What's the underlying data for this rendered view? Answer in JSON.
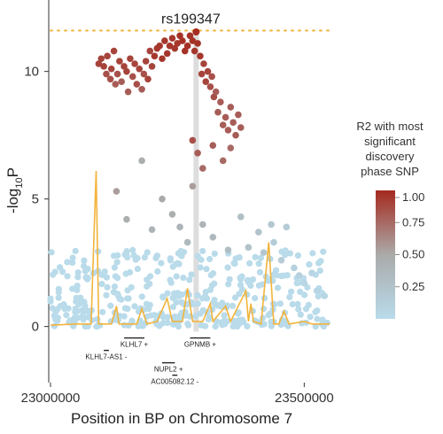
{
  "chart_data": {
    "type": "scatter",
    "title": "",
    "xlabel": "Position in BP on Chromosome 7",
    "ylabel_main": "-log",
    "ylabel_sub": "10",
    "ylabel_tail": "P",
    "xlim": [
      23000000,
      23550000
    ],
    "ylim": [
      -2.2,
      12.8
    ],
    "x_ticks": [
      23000000,
      23500000
    ],
    "x_tick_labels": [
      "23000000",
      "23500000"
    ],
    "y_ticks": [
      0,
      5,
      10
    ],
    "y_tick_labels": [
      "0",
      "5",
      "10"
    ],
    "significance_threshold": 11.6,
    "lead_snp": {
      "label": "rs199347",
      "x": 23287000,
      "y": 11.55
    },
    "legend": {
      "title_lines": [
        "R2 with most",
        "significant",
        "discovery",
        "phase SNP"
      ],
      "ticks": [
        1.0,
        0.75,
        0.5,
        0.25
      ],
      "tick_labels": [
        "1.00",
        "0.75",
        "0.50",
        "0.25"
      ],
      "placement": "right"
    },
    "colors": {
      "high_ld": "#a52a1f",
      "mid_ld": "#aaaaaa",
      "low_ld": "#b9dbea",
      "recomb_line": "#f2b43c",
      "threshold": "#f2b43c",
      "lead_vline": "#d0d0d0"
    },
    "genes": [
      {
        "name": "KLHL7 +",
        "start": 23145000,
        "end": 23185000,
        "row": 0
      },
      {
        "name": "GPNMB +",
        "start": 23275000,
        "end": 23315000,
        "row": 0
      },
      {
        "name": "KLHL7-AS1 -",
        "start": 23105000,
        "end": 23115000,
        "row": 1
      },
      {
        "name": "NUPL2 +",
        "start": 23220000,
        "end": 23245000,
        "row": 2
      },
      {
        "name": "AC005082.12 -",
        "start": 23240000,
        "end": 23250000,
        "row": 3
      }
    ],
    "recombination": [
      [
        23000000,
        0.05
      ],
      [
        23050000,
        0.1
      ],
      [
        23080000,
        0.1
      ],
      [
        23090000,
        6.1
      ],
      [
        23095000,
        0.1
      ],
      [
        23120000,
        0.1
      ],
      [
        23130000,
        0.8
      ],
      [
        23135000,
        0.1
      ],
      [
        23170000,
        0.1
      ],
      [
        23180000,
        0.7
      ],
      [
        23190000,
        0.1
      ],
      [
        23210000,
        0.2
      ],
      [
        23230000,
        1.1
      ],
      [
        23240000,
        0.2
      ],
      [
        23260000,
        0.2
      ],
      [
        23270000,
        1.5
      ],
      [
        23280000,
        0.2
      ],
      [
        23300000,
        0.2
      ],
      [
        23315000,
        0.9
      ],
      [
        23320000,
        0.2
      ],
      [
        23345000,
        0.8
      ],
      [
        23355000,
        0.2
      ],
      [
        23385000,
        1.4
      ],
      [
        23390000,
        0.2
      ],
      [
        23395000,
        0.9
      ],
      [
        23400000,
        0.2
      ],
      [
        23415000,
        0.1
      ],
      [
        23430000,
        3.3
      ],
      [
        23440000,
        0.1
      ],
      [
        23450000,
        0.1
      ],
      [
        23460000,
        0.6
      ],
      [
        23470000,
        0.1
      ],
      [
        23500000,
        0.2
      ],
      [
        23515000,
        0.1
      ],
      [
        23550000,
        0.1
      ]
    ],
    "series": [
      {
        "name": "",
        "points": [
          [
            23095000,
            10.3,
            0.9
          ],
          [
            23100000,
            10.5,
            0.9
          ],
          [
            23105000,
            10.2,
            0.9
          ],
          [
            23110000,
            9.9,
            0.85
          ],
          [
            23112000,
            10.6,
            0.9
          ],
          [
            23118000,
            9.7,
            0.85
          ],
          [
            23120000,
            10.1,
            0.9
          ],
          [
            23125000,
            10.8,
            0.9
          ],
          [
            23128000,
            9.5,
            0.8
          ],
          [
            23132000,
            9.9,
            0.85
          ],
          [
            23136000,
            10.4,
            0.9
          ],
          [
            23140000,
            9.6,
            0.8
          ],
          [
            23145000,
            10.2,
            0.9
          ],
          [
            23150000,
            10.0,
            0.9
          ],
          [
            23153000,
            9.2,
            0.8
          ],
          [
            23157000,
            10.5,
            0.9
          ],
          [
            23162000,
            9.8,
            0.85
          ],
          [
            23166000,
            10.3,
            0.9
          ],
          [
            23170000,
            9.5,
            0.85
          ],
          [
            23175000,
            10.1,
            0.9
          ],
          [
            23180000,
            9.3,
            0.8
          ],
          [
            23184000,
            9.9,
            0.85
          ],
          [
            23188000,
            10.4,
            0.9
          ],
          [
            23192000,
            9.7,
            0.9
          ],
          [
            23196000,
            10.8,
            0.9
          ],
          [
            23200000,
            10.2,
            0.9
          ],
          [
            23205000,
            10.6,
            0.95
          ],
          [
            23210000,
            10.9,
            0.95
          ],
          [
            23215000,
            11.0,
            0.95
          ],
          [
            23220000,
            10.5,
            0.95
          ],
          [
            23225000,
            11.2,
            0.95
          ],
          [
            23230000,
            10.7,
            0.95
          ],
          [
            23235000,
            11.0,
            0.95
          ],
          [
            23240000,
            11.3,
            0.95
          ],
          [
            23245000,
            10.9,
            0.95
          ],
          [
            23250000,
            11.1,
            0.95
          ],
          [
            23255000,
            11.4,
            0.97
          ],
          [
            23260000,
            11.2,
            0.97
          ],
          [
            23265000,
            10.8,
            0.97
          ],
          [
            23270000,
            11.0,
            0.97
          ],
          [
            23275000,
            11.4,
            0.97
          ],
          [
            23280000,
            11.2,
            0.97
          ],
          [
            23284000,
            10.8,
            0.95
          ],
          [
            23290000,
            11.1,
            0.97
          ],
          [
            23295000,
            10.6,
            0.95
          ],
          [
            23298000,
            9.9,
            0.9
          ],
          [
            23302000,
            10.3,
            0.9
          ],
          [
            23306000,
            9.6,
            0.9
          ],
          [
            23310000,
            10.0,
            0.9
          ],
          [
            23315000,
            9.4,
            0.85
          ],
          [
            23318000,
            9.8,
            0.85
          ],
          [
            23322000,
            9.0,
            0.85
          ],
          [
            23326000,
            9.2,
            0.8
          ],
          [
            23330000,
            8.4,
            0.8
          ],
          [
            23335000,
            8.8,
            0.8
          ],
          [
            23340000,
            7.9,
            0.8
          ],
          [
            23345000,
            8.2,
            0.8
          ],
          [
            23350000,
            7.7,
            0.8
          ],
          [
            23355000,
            8.6,
            0.8
          ],
          [
            23360000,
            8.0,
            0.8
          ],
          [
            23365000,
            7.5,
            0.8
          ],
          [
            23370000,
            8.3,
            0.8
          ],
          [
            23375000,
            7.8,
            0.8
          ],
          [
            23280000,
            7.3,
            0.85
          ],
          [
            23290000,
            6.8,
            0.8
          ],
          [
            23320000,
            7.1,
            0.8
          ],
          [
            23340000,
            6.5,
            0.75
          ],
          [
            23355000,
            7.0,
            0.75
          ],
          [
            23300000,
            6.2,
            0.75
          ],
          [
            23280000,
            5.5,
            0.55
          ],
          [
            23180000,
            6.5,
            0.45
          ],
          [
            23130000,
            5.3,
            0.55
          ],
          [
            23150000,
            4.2,
            0.45
          ],
          [
            23200000,
            3.8,
            0.4
          ],
          [
            23220000,
            5.0,
            0.5
          ],
          [
            23240000,
            4.4,
            0.45
          ],
          [
            23255000,
            3.9,
            0.4
          ],
          [
            23270000,
            3.3,
            0.35
          ],
          [
            23300000,
            4.0,
            0.4
          ],
          [
            23320000,
            3.5,
            0.35
          ],
          [
            23350000,
            3.0,
            0.3
          ],
          [
            23375000,
            4.3,
            0.3
          ],
          [
            23390000,
            3.1,
            0.25
          ],
          [
            23410000,
            3.7,
            0.25
          ],
          [
            23420000,
            2.9,
            0.2
          ],
          [
            23435000,
            4.0,
            0.2
          ],
          [
            23440000,
            3.3,
            0.15
          ],
          [
            23455000,
            2.6,
            0.15
          ],
          [
            23465000,
            3.9,
            0.15
          ],
          [
            23480000,
            2.3,
            0.1
          ],
          [
            23490000,
            2.0,
            0.1
          ],
          [
            23500000,
            1.7,
            0.05
          ],
          [
            23515000,
            2.1,
            0.05
          ],
          [
            23525000,
            1.4,
            0.05
          ],
          [
            23540000,
            1.2,
            0.05
          ]
        ]
      }
    ]
  }
}
